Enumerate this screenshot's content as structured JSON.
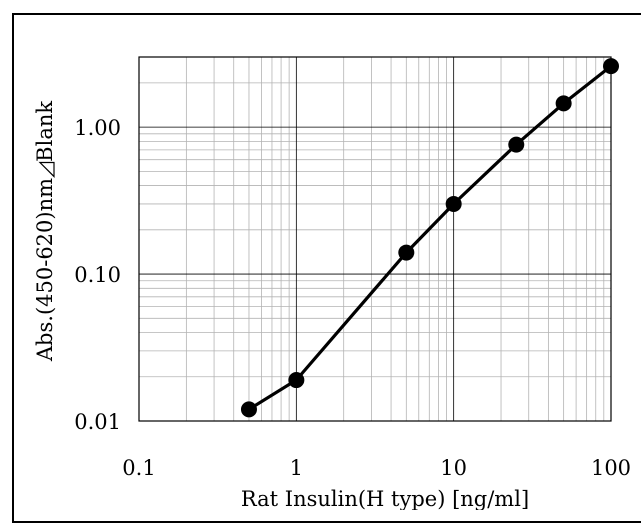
{
  "chart_data": {
    "type": "line",
    "title": "",
    "xlabel": "Rat Insulin(H type) [ng/ml]",
    "ylabel": "Abs.(450-620)nm◿Blank",
    "x_scale": "log",
    "y_scale": "log",
    "xlim": [
      0.1,
      100
    ],
    "ylim": [
      0.01,
      3
    ],
    "x_ticks": [
      "0.1",
      "1",
      "10",
      "100"
    ],
    "y_ticks": [
      "0.01",
      "0.10",
      "1.00"
    ],
    "grid": true,
    "legend": "none",
    "series": [
      {
        "x": [
          0.5,
          1,
          5,
          10,
          25,
          50,
          100
        ],
        "y": [
          0.012,
          0.019,
          0.14,
          0.3,
          0.76,
          1.45,
          2.6
        ]
      }
    ],
    "colors": {
      "line": "#000000",
      "marker": "#000000",
      "major_grid": "#000000",
      "minor_grid": "#b3b3b3"
    }
  }
}
